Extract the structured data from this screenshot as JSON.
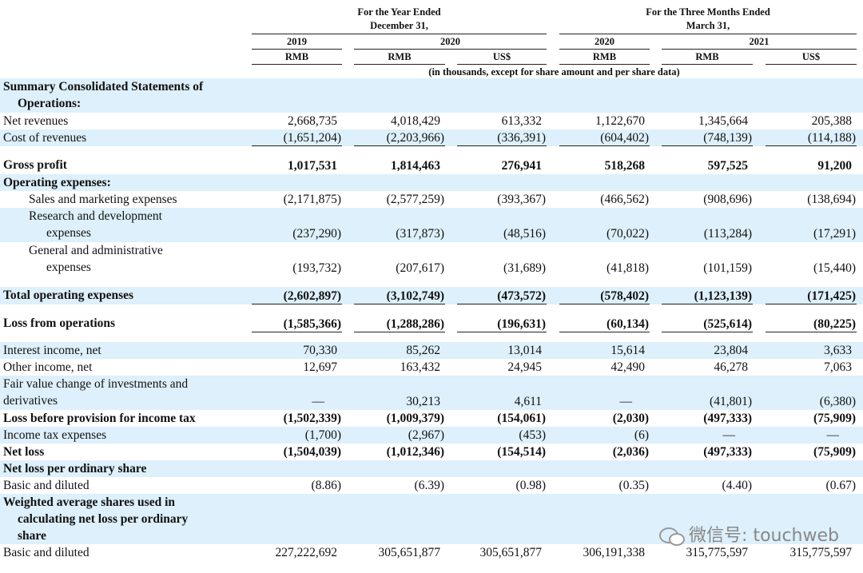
{
  "header": {
    "groups": [
      {
        "lines": [
          "For the Year Ended",
          "December 31,"
        ]
      },
      {
        "lines": [
          "For the Three Months Ended",
          "March 31,"
        ]
      }
    ],
    "years": [
      "2019",
      "2020",
      "2020",
      "2021"
    ],
    "currencies": [
      "RMB",
      "RMB",
      "US$",
      "RMB",
      "RMB",
      "US$"
    ],
    "note": "(in thousands, except for share amount and per share data)"
  },
  "table": {
    "rows": [
      {
        "label": [
          "Summary Consolidated Statements of",
          "Operations:"
        ],
        "bold": true,
        "values": []
      },
      {
        "label": [
          "Net revenues"
        ],
        "values": [
          "2,668,735",
          "4,018,429",
          "613,332",
          "1,122,670",
          "1,345,664",
          "205,388"
        ]
      },
      {
        "label": [
          "Cost of revenues"
        ],
        "values": [
          "(1,651,204)",
          "(2,203,966)",
          "(336,391)",
          "(604,402)",
          "(748,139)",
          "(114,188)"
        ]
      },
      {
        "label": [
          "Gross profit"
        ],
        "bold": true,
        "values": [
          "1,017,531",
          "1,814,463",
          "276,941",
          "518,268",
          "597,525",
          "91,200"
        ]
      },
      {
        "label": [
          "Operating expenses:"
        ],
        "bold": true,
        "values": []
      },
      {
        "label": [
          "Sales and marketing expenses"
        ],
        "values": [
          "(2,171,875)",
          "(2,577,259)",
          "(393,367)",
          "(466,562)",
          "(908,696)",
          "(138,694)"
        ]
      },
      {
        "label": [
          "Research and development",
          "expenses"
        ],
        "values": [
          "(237,290)",
          "(317,873)",
          "(48,516)",
          "(70,022)",
          "(113,284)",
          "(17,291)"
        ]
      },
      {
        "label": [
          "General and administrative",
          "expenses"
        ],
        "values": [
          "(193,732)",
          "(207,617)",
          "(31,689)",
          "(41,818)",
          "(101,159)",
          "(15,440)"
        ]
      },
      {
        "label": [
          "Total operating expenses"
        ],
        "bold": true,
        "values": [
          "(2,602,897)",
          "(3,102,749)",
          "(473,572)",
          "(578,402)",
          "(1,123,139)",
          "(171,425)"
        ]
      },
      {
        "label": [
          "Loss from operations"
        ],
        "bold": true,
        "values": [
          "(1,585,366)",
          "(1,288,286)",
          "(196,631)",
          "(60,134)",
          "(525,614)",
          "(80,225)"
        ]
      },
      {
        "label": [
          "Interest income, net"
        ],
        "values": [
          "70,330",
          "85,262",
          "13,014",
          "15,614",
          "23,804",
          "3,633"
        ]
      },
      {
        "label": [
          "Other income, net"
        ],
        "values": [
          "12,697",
          "163,432",
          "24,945",
          "42,490",
          "46,278",
          "7,063"
        ]
      },
      {
        "label": [
          "Fair value change of investments and",
          "derivatives"
        ],
        "values": [
          "—",
          "30,213",
          "4,611",
          "—",
          "(41,801)",
          "(6,380)"
        ]
      },
      {
        "label": [
          "Loss before provision for income tax"
        ],
        "bold": true,
        "values": [
          "(1,502,339)",
          "(1,009,379)",
          "(154,061)",
          "(2,030)",
          "(497,333)",
          "(75,909)"
        ]
      },
      {
        "label": [
          "Income tax expenses"
        ],
        "values": [
          "(1,700)",
          "(2,967)",
          "(453)",
          "(6)",
          "—",
          "—"
        ]
      },
      {
        "label": [
          "Net loss"
        ],
        "bold": true,
        "values": [
          "(1,504,039)",
          "(1,012,346)",
          "(154,514)",
          "(2,036)",
          "(497,333)",
          "(75,909)"
        ]
      },
      {
        "label": [
          "Net loss per ordinary share"
        ],
        "bold": true,
        "values": []
      },
      {
        "label": [
          "Basic and diluted"
        ],
        "values": [
          "(8.86)",
          "(6.39)",
          "(0.98)",
          "(0.35)",
          "(4.40)",
          "(0.67)"
        ]
      },
      {
        "label": [
          "Weighted average shares used in",
          "calculating net loss per ordinary",
          "share"
        ],
        "bold": true,
        "values": []
      },
      {
        "label": [
          "Basic and diluted"
        ],
        "values": [
          "227,222,692",
          "305,651,877",
          "305,651,877",
          "306,191,338",
          "315,775,597",
          "315,775,597"
        ]
      }
    ]
  },
  "watermark": "微信号: touchweb"
}
